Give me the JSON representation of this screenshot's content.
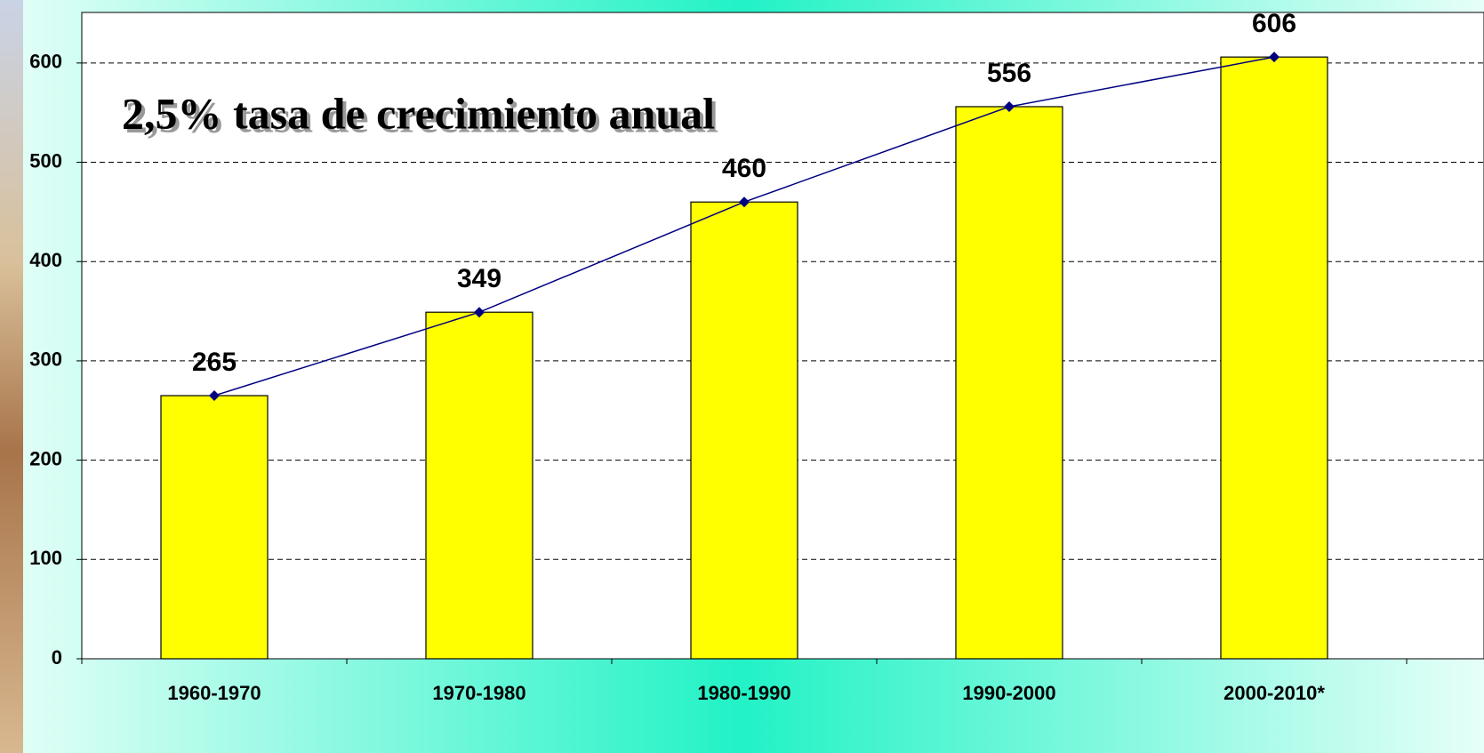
{
  "chart_data": {
    "type": "bar",
    "annotation": "2,5% tasa de crecimiento anual",
    "categories": [
      "1960-1970",
      "1970-1980",
      "1980-1990",
      "1990-2000",
      "2000-2010*"
    ],
    "series": [
      {
        "type": "bar",
        "color": "#ffff00",
        "values": [
          265,
          349,
          460,
          556,
          606
        ]
      },
      {
        "type": "line",
        "color": "#000080",
        "values": [
          265,
          349,
          460,
          556,
          606
        ]
      }
    ],
    "ylim": [
      0,
      650
    ],
    "yticks": [
      0,
      100,
      200,
      300,
      400,
      500,
      600
    ],
    "grid": true
  }
}
